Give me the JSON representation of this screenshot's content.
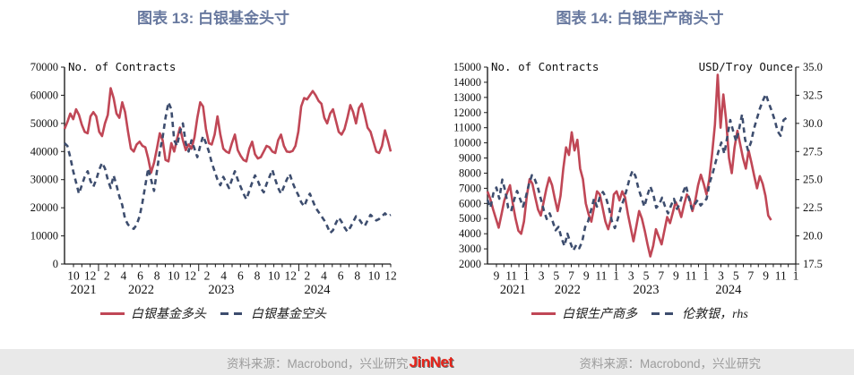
{
  "footer": {
    "left_source": "资料来源：Macrobond，兴业研究",
    "watermark": "JinNet",
    "right_source": "资料来源：Macrobond，兴业研究",
    "bar_color": "#e9e9e9",
    "text_color": "#9c9c9c",
    "watermark_color": "#e8241a"
  },
  "colors": {
    "title_blue": "#68799f",
    "line_red": "#c04756",
    "line_navy": "#3d4d6e"
  },
  "chart_data": [
    {
      "type": "line",
      "title": "图表 13: 白银基金头寸",
      "axis_caption_left": "No. of Contracts",
      "axis_caption_right": null,
      "ylim_left": [
        0,
        70000
      ],
      "yticks_left": [
        "0",
        "10000",
        "20000",
        "30000",
        "40000",
        "50000",
        "60000",
        "70000"
      ],
      "ylim_right": null,
      "yticks_right": [],
      "n_months": 39,
      "first_month": 10,
      "month_tick_labels": [
        "10",
        "12",
        "2",
        "4",
        "6",
        "8",
        "10",
        "12",
        "2",
        "4",
        "6",
        "8",
        "10",
        "12",
        "2",
        "4",
        "6",
        "8",
        "10",
        "12"
      ],
      "year_labels": [
        {
          "label": "2021",
          "month_index": 1.2
        },
        {
          "label": "2022",
          "month_index": 8.1
        },
        {
          "label": "2023",
          "month_index": 17.7
        },
        {
          "label": "2024",
          "month_index": 29.2
        }
      ],
      "grid": false,
      "legend_position": "bottom",
      "series": [
        {
          "name": "白银基金多头",
          "style": "solid",
          "color": "#c04756",
          "axis": "left",
          "x_span": 1.0,
          "values": [
            48000,
            50500,
            53500,
            51500,
            55000,
            53000,
            49500,
            47000,
            46500,
            52500,
            54000,
            52500,
            47000,
            45500,
            50000,
            53000,
            62500,
            59000,
            53500,
            52000,
            57500,
            54000,
            47000,
            41000,
            40000,
            42500,
            43500,
            42000,
            41500,
            37500,
            32500,
            36000,
            41000,
            46500,
            44000,
            37000,
            36500,
            43000,
            40000,
            44500,
            48500,
            44000,
            40500,
            42500,
            41000,
            45000,
            52000,
            57500,
            56000,
            48000,
            43000,
            42500,
            46000,
            52500,
            46000,
            41000,
            40000,
            39500,
            43000,
            46000,
            40500,
            38500,
            37000,
            36500,
            41000,
            43500,
            39000,
            37500,
            38000,
            40000,
            42000,
            41500,
            40000,
            39500,
            44000,
            46000,
            42000,
            40000,
            39800,
            40200,
            42000,
            47000,
            56000,
            59000,
            58500,
            60000,
            61500,
            60000,
            58000,
            57000,
            52000,
            50000,
            53500,
            55000,
            51000,
            47000,
            46000,
            48000,
            52000,
            56500,
            54000,
            50000,
            55500,
            57000,
            53000,
            48500,
            47000,
            43500,
            40000,
            39500,
            42000,
            47500,
            44000,
            40000
          ]
        },
        {
          "name": "白银基金空头",
          "style": "dashed",
          "color": "#3d4d6e",
          "axis": "left",
          "x_span": 1.0,
          "values": [
            43000,
            42000,
            38000,
            33000,
            29000,
            25000,
            28000,
            31000,
            33000,
            29500,
            27500,
            30000,
            33500,
            36000,
            34000,
            30000,
            27000,
            31500,
            28000,
            24000,
            21000,
            16000,
            14000,
            13000,
            12500,
            14000,
            17000,
            22000,
            28000,
            34000,
            30000,
            26000,
            33000,
            40000,
            45000,
            52000,
            57500,
            55000,
            44000,
            42000,
            47000,
            50000,
            43000,
            40000,
            44000,
            41000,
            38000,
            42000,
            45500,
            43000,
            40000,
            36000,
            33000,
            30000,
            28000,
            31000,
            29000,
            27000,
            30000,
            33000,
            30000,
            27500,
            25000,
            23000,
            26000,
            29000,
            31500,
            29500,
            27000,
            25500,
            28500,
            31000,
            33500,
            30000,
            27000,
            25000,
            27500,
            30000,
            32000,
            29000,
            26500,
            24500,
            22000,
            20500,
            23000,
            25000,
            22500,
            20000,
            18500,
            17000,
            15500,
            13500,
            11000,
            12000,
            14500,
            16500,
            15000,
            13000,
            11500,
            13000,
            15000,
            17000,
            16000,
            14500,
            13500,
            15500,
            17500,
            16500,
            15500,
            16000,
            17000,
            18000,
            17000,
            17500
          ]
        }
      ]
    },
    {
      "type": "line",
      "title": "图表 14: 白银生产商头寸",
      "axis_caption_left": "No. of Contracts",
      "axis_caption_right": "USD/Troy Ounce",
      "ylim_left": [
        2000,
        15000
      ],
      "yticks_left": [
        "2000",
        "3000",
        "4000",
        "5000",
        "6000",
        "7000",
        "8000",
        "9000",
        "10000",
        "11000",
        "12000",
        "13000",
        "14000",
        "15000"
      ],
      "ylim_right": [
        17.5,
        35.0
      ],
      "yticks_right": [
        "17.5",
        "20.0",
        "22.5",
        "25.0",
        "27.5",
        "30.0",
        "32.5",
        "35.0"
      ],
      "n_months": 41,
      "first_month": 9,
      "month_tick_labels": [
        "9",
        "11",
        "1",
        "3",
        "5",
        "7",
        "9",
        "11",
        "1",
        "3",
        "5",
        "7",
        "9",
        "11",
        "1",
        "3",
        "5",
        "7",
        "9",
        "11",
        "1"
      ],
      "year_labels": [
        {
          "label": "2021",
          "month_index": 2.2
        },
        {
          "label": "2022",
          "month_index": 9.5
        },
        {
          "label": "2023",
          "month_index": 20
        },
        {
          "label": "2024",
          "month_index": 31
        }
      ],
      "grid": false,
      "legend_position": "bottom",
      "series": [
        {
          "name": "白银生产商多",
          "style": "solid",
          "color": "#c04756",
          "axis": "left",
          "x_span": 0.92,
          "values": [
            6800,
            6300,
            5600,
            5000,
            4400,
            5300,
            6200,
            6700,
            7200,
            6000,
            5000,
            4200,
            4000,
            4800,
            6500,
            7600,
            7300,
            6400,
            5600,
            5200,
            6100,
            7000,
            7700,
            7200,
            6300,
            5500,
            6500,
            8300,
            9700,
            9200,
            10700,
            9500,
            10200,
            8300,
            7600,
            6000,
            5300,
            4800,
            5800,
            6800,
            6600,
            5700,
            4800,
            4300,
            5000,
            6600,
            6800,
            6200,
            6800,
            6400,
            5300,
            4400,
            3500,
            4500,
            5500,
            5000,
            4200,
            3300,
            2500,
            3200,
            4300,
            3800,
            3300,
            4200,
            5100,
            4700,
            5400,
            6100,
            5700,
            5100,
            5900,
            6600,
            6300,
            5500,
            6200,
            7200,
            7900,
            7300,
            6600,
            7600,
            9300,
            11200,
            14500,
            11000,
            13200,
            11500,
            9000,
            8000,
            9700,
            10800,
            9900,
            9000,
            8300,
            9500,
            8700,
            7800,
            7000,
            7800,
            7300,
            6500,
            5200,
            4900
          ]
        },
        {
          "name": "伦敦银，rhs",
          "style": "dashed",
          "color": "#3d4d6e",
          "axis": "right",
          "x_span": 0.97,
          "values": [
            23.2,
            22.5,
            23.8,
            24.3,
            23.3,
            25.0,
            24.0,
            22.5,
            22.2,
            23.2,
            24.0,
            23.3,
            22.6,
            23.5,
            24.6,
            25.4,
            25.0,
            24.3,
            23.3,
            22.3,
            21.5,
            22.0,
            21.3,
            20.5,
            20.8,
            19.8,
            19.1,
            20.2,
            19.4,
            18.7,
            19.2,
            18.9,
            19.5,
            20.8,
            21.3,
            22.3,
            23.3,
            22.6,
            23.5,
            23.9,
            23.4,
            22.5,
            21.3,
            20.7,
            21.5,
            22.5,
            23.2,
            24.1,
            25.1,
            25.8,
            25.3,
            24.2,
            23.4,
            22.6,
            23.6,
            24.4,
            23.7,
            22.5,
            22.8,
            23.4,
            22.6,
            22.0,
            22.7,
            23.3,
            22.4,
            22.9,
            23.8,
            24.5,
            23.4,
            22.4,
            22.8,
            23.2,
            22.7,
            23.0,
            23.3,
            24.7,
            25.5,
            26.5,
            27.5,
            28.3,
            27.3,
            28.8,
            30.3,
            29.3,
            28.4,
            29.5,
            30.8,
            28.6,
            27.6,
            28.3,
            29.5,
            30.4,
            31.3,
            32.0,
            32.6,
            31.8,
            31.1,
            30.3,
            29.3,
            28.9,
            30.3,
            30.5
          ]
        }
      ]
    }
  ]
}
